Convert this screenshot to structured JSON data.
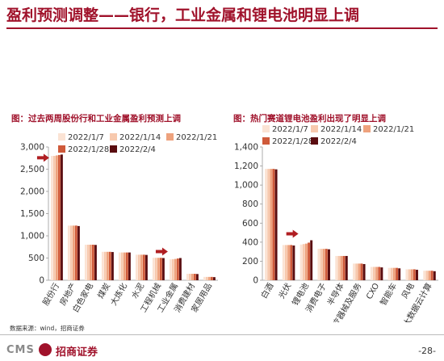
{
  "page": {
    "title": "盈利预测调整——银行，工业金属和锂电池明显上调",
    "source": "数据来源：wind，招商证券",
    "footer_brand_latin": "CMS",
    "footer_brand_cn": "招商证券",
    "page_number": "-28-"
  },
  "chart_data": [
    {
      "type": "bar",
      "title": "图：过去两周股份行和工业金属盈利预测上调",
      "categories": [
        "股份行",
        "房地产",
        "白色家电",
        "煤炭",
        "大炼化",
        "水泥",
        "工程机械",
        "工业金属",
        "消费建材",
        "家居用品"
      ],
      "series": [
        {
          "name": "2022/1/7",
          "values": [
            2800,
            1230,
            800,
            640,
            625,
            575,
            505,
            470,
            145,
            75
          ]
        },
        {
          "name": "2022/1/14",
          "values": [
            2800,
            1230,
            800,
            640,
            625,
            575,
            505,
            475,
            145,
            75
          ]
        },
        {
          "name": "2022/1/21",
          "values": [
            2810,
            1230,
            800,
            640,
            625,
            575,
            505,
            480,
            145,
            75
          ]
        },
        {
          "name": "2022/1/28",
          "values": [
            2820,
            1230,
            800,
            640,
            625,
            575,
            505,
            490,
            145,
            75
          ]
        },
        {
          "name": "2022/2/4",
          "values": [
            2830,
            1220,
            795,
            635,
            625,
            570,
            500,
            500,
            140,
            70
          ]
        }
      ],
      "ylim": [
        0,
        3000
      ],
      "yticks": [
        0,
        500,
        1000,
        1500,
        2000,
        2500,
        3000
      ],
      "ytick_labels": [
        "0",
        "500",
        "1,000",
        "1,500",
        "2,000",
        "2,500",
        "3,000"
      ],
      "grid": false,
      "legend": "top",
      "arrow_markers": [
        "股份行",
        "工业金属"
      ]
    },
    {
      "type": "bar",
      "title": "图：热门赛道锂电池盈利出现了明显上调",
      "categories": [
        "白酒",
        "光伏",
        "锂电池",
        "消费电子",
        "半导体",
        "医疗器械及服务",
        "CXO",
        "智能车",
        "风电",
        "大数据云计算"
      ],
      "series": [
        {
          "name": "2022/1/7",
          "values": [
            1170,
            370,
            375,
            330,
            255,
            175,
            140,
            130,
            115,
            100
          ]
        },
        {
          "name": "2022/1/14",
          "values": [
            1170,
            370,
            380,
            330,
            255,
            175,
            140,
            130,
            115,
            100
          ]
        },
        {
          "name": "2022/1/21",
          "values": [
            1170,
            370,
            385,
            330,
            255,
            175,
            140,
            130,
            115,
            100
          ]
        },
        {
          "name": "2022/1/28",
          "values": [
            1170,
            370,
            395,
            330,
            255,
            175,
            140,
            130,
            115,
            100
          ]
        },
        {
          "name": "2022/2/4",
          "values": [
            1165,
            365,
            420,
            325,
            255,
            170,
            135,
            125,
            110,
            95
          ]
        }
      ],
      "ylim": [
        0,
        1400
      ],
      "yticks": [
        0,
        200,
        400,
        600,
        800,
        1000,
        1200,
        1400
      ],
      "ytick_labels": [
        "0",
        "200",
        "400",
        "600",
        "800",
        "1,000",
        "1,200",
        "1,400"
      ],
      "grid": false,
      "legend": "top",
      "arrow_markers": [
        "锂电池"
      ]
    }
  ],
  "colors": {
    "series": [
      "#fbe3d4",
      "#f7c9ae",
      "#eea27d",
      "#cf5a3a",
      "#5a0d10"
    ],
    "accent": "#a0122b",
    "arrow": "#b01e22",
    "axis": "#999999"
  }
}
